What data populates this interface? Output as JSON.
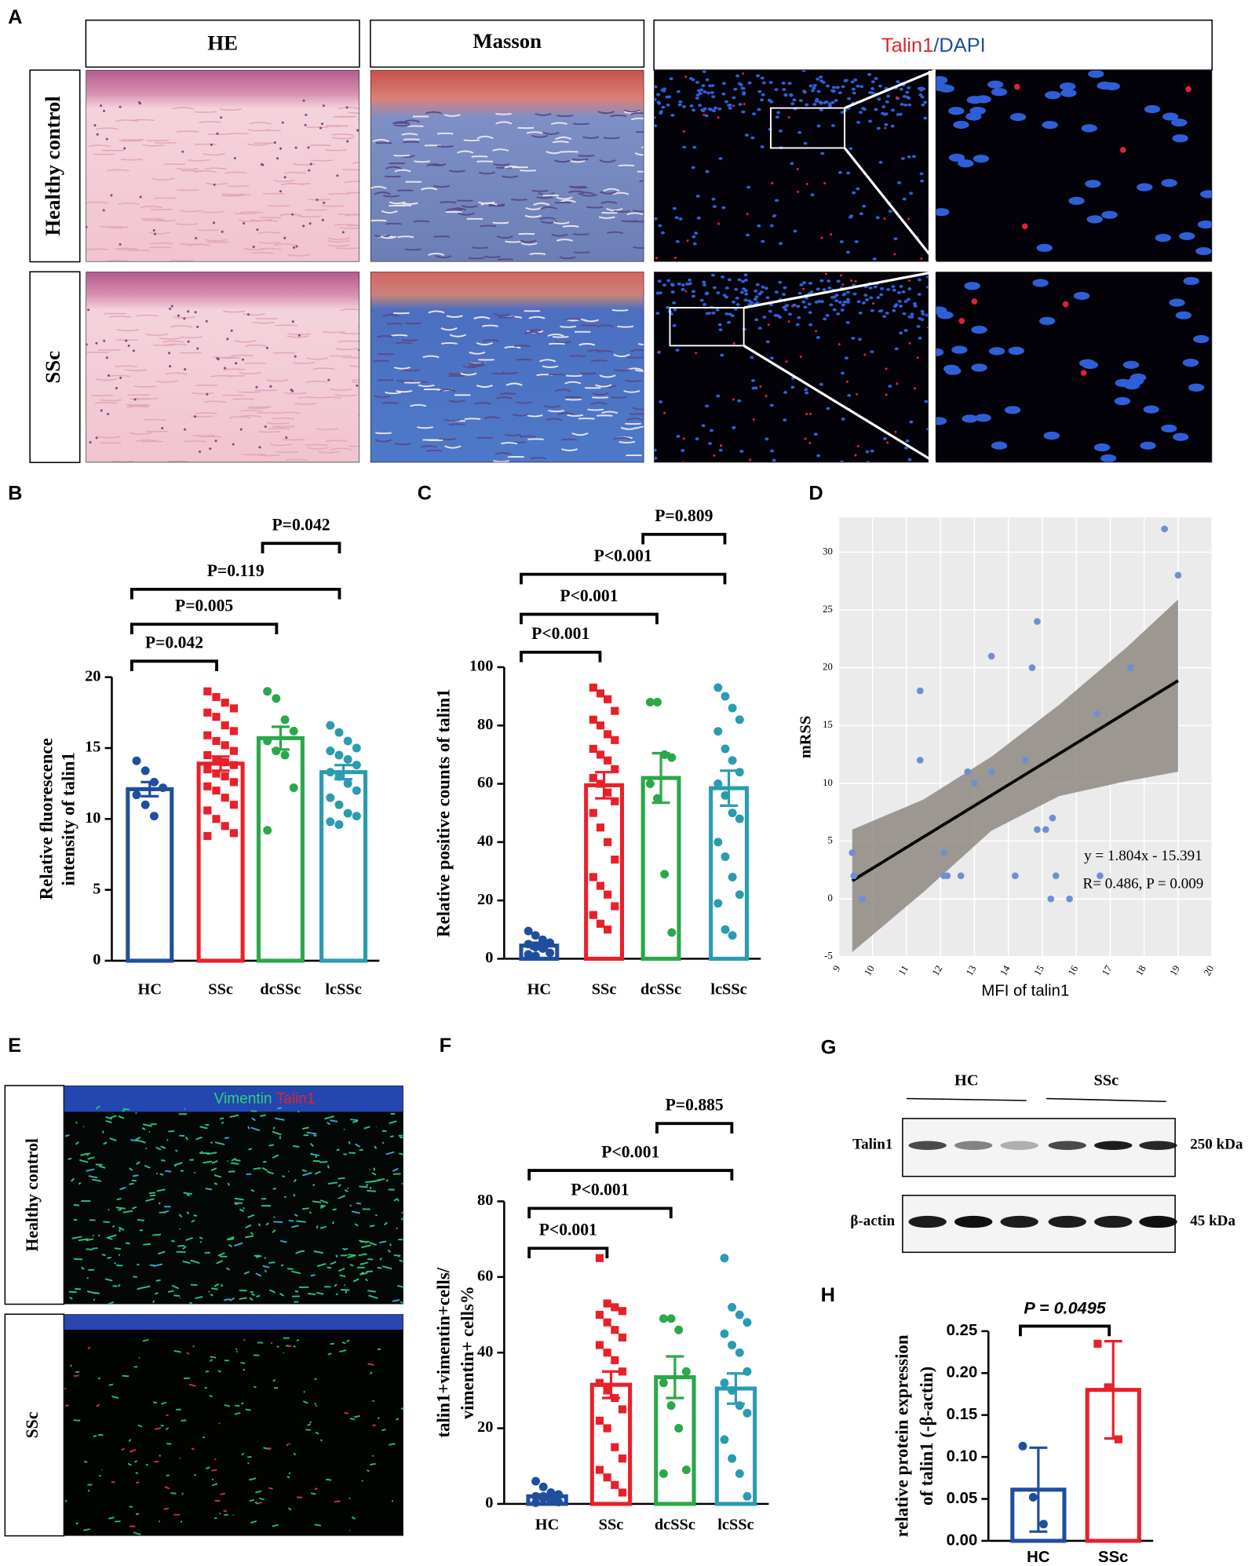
{
  "figure": {
    "panel_labels": [
      "A",
      "B",
      "C",
      "D",
      "E",
      "F",
      "G",
      "H"
    ],
    "panel_a": {
      "headers": [
        "HE",
        "Masson"
      ],
      "if_header": [
        "Talin1",
        "/DAPI"
      ],
      "rows": [
        "Healthy control",
        "SSc"
      ]
    },
    "panel_e": {
      "stain": [
        "Vimentin",
        "Talin1"
      ],
      "rows": [
        "Healthy control",
        "SSc"
      ]
    },
    "panel_g": {
      "groups": [
        "HC",
        "SSc"
      ],
      "proteins": [
        "Talin1",
        "β-actin"
      ],
      "sizes": [
        "250 kDa",
        "45 kDa"
      ]
    }
  },
  "chart_data": [
    {
      "type": "bar",
      "categories": [
        "HC",
        "SSc",
        "dcSSc",
        "lcSSc"
      ],
      "values": [
        12.1,
        13.9,
        15.7,
        13.3
      ],
      "errors": [
        0.5,
        0.5,
        0.8,
        0.5
      ],
      "points": [
        [
          14.1,
          13.4,
          12.6,
          12.2,
          11.7,
          11.0,
          10.2
        ],
        [
          19.0,
          18.6,
          18.2,
          17.8,
          17.5,
          17.2,
          16.6,
          16.2,
          15.9,
          15.5,
          15.2,
          14.8,
          14.5,
          14.2,
          14.0,
          13.8,
          13.5,
          13.2,
          13.0,
          12.6,
          12.3,
          12.0,
          11.5,
          11.0,
          10.6,
          10.0,
          9.5,
          9.0,
          8.8
        ],
        [
          19.0,
          18.5,
          17.0,
          16.2,
          15.5,
          14.8,
          14.5,
          12.2,
          9.2
        ],
        [
          16.6,
          16.1,
          15.5,
          15.0,
          14.8,
          14.5,
          14.2,
          13.8,
          13.3,
          13.0,
          12.5,
          12.0,
          11.5,
          11.0,
          10.4,
          10.2,
          9.8,
          9.6
        ]
      ],
      "colors": [
        "#1f4e9e",
        "#e8202a",
        "#2aa84a",
        "#2a9bb0"
      ],
      "markers": [
        "circle",
        "square",
        "circle",
        "circle"
      ],
      "ylabel": [
        "Relative fluorescence",
        "intensity of talin1"
      ],
      "ylim": [
        0,
        20
      ],
      "yticks": [
        0,
        5,
        10,
        15,
        20
      ],
      "comparisons": [
        "P=0.042",
        "P=0.005",
        "P=0.119",
        "P=0.042"
      ]
    },
    {
      "type": "bar",
      "categories": [
        "HC",
        "SSc",
        "dcSSc",
        "lcSSc"
      ],
      "values": [
        4.5,
        59.5,
        62,
        58.5
      ],
      "errors": [
        1,
        4.5,
        8.5,
        6
      ],
      "points": [
        [
          9.5,
          8,
          6.5,
          5.5,
          5,
          4,
          3.5,
          2,
          1.5,
          1
        ],
        [
          93,
          91,
          89,
          85,
          82,
          80,
          77,
          75,
          72,
          70,
          68,
          65,
          62,
          60,
          57,
          54,
          50,
          45,
          40,
          34,
          28,
          25,
          22,
          18,
          15,
          12,
          10
        ],
        [
          88,
          88,
          70,
          69,
          60,
          55,
          29,
          9
        ],
        [
          93,
          90,
          86,
          82,
          78,
          72,
          68,
          64,
          60,
          56,
          50,
          48,
          40,
          35,
          28,
          22,
          19,
          10,
          8
        ]
      ],
      "colors": [
        "#1f4e9e",
        "#e8202a",
        "#2aa84a",
        "#2a9bb0"
      ],
      "markers": [
        "circle",
        "square",
        "circle",
        "circle"
      ],
      "ylabel": [
        "Relative positive counts of talin1"
      ],
      "ylim": [
        0,
        100
      ],
      "yticks": [
        0,
        20,
        40,
        60,
        80,
        100
      ],
      "comparisons": [
        "P<0.001",
        "P<0.001",
        "P<0.001",
        "P=0.809"
      ]
    },
    {
      "type": "scatter",
      "xlabel": "MFI of talin1",
      "ylabel": "mRSS",
      "x": [
        9.4,
        9.45,
        9.7,
        11.4,
        11.4,
        12.1,
        12.1,
        12.2,
        12.6,
        12.8,
        13.0,
        13.5,
        13.5,
        14.2,
        14.5,
        14.7,
        14.85,
        14.85,
        15.1,
        15.3,
        15.25,
        15.4,
        15.8,
        16.6,
        16.7,
        17.6,
        18.6,
        19.0
      ],
      "y": [
        4,
        2,
        0,
        18,
        12,
        4,
        2,
        2,
        2,
        11,
        10,
        21,
        11,
        2,
        12,
        20,
        24,
        6,
        6,
        7,
        0,
        2,
        0,
        16,
        2,
        20,
        32,
        28
      ],
      "color": "#6f8fd0",
      "fit": {
        "x": [
          9.4,
          19.0
        ],
        "y": [
          1.57,
          18.88
        ]
      },
      "band": {
        "x": [
          9.4,
          11.5,
          13.5,
          15.5,
          17.5,
          19.0
        ],
        "upper": [
          6.0,
          8.6,
          12.3,
          16.8,
          21.8,
          25.9
        ],
        "lower": [
          -4.6,
          0.6,
          5.9,
          8.9,
          10.2,
          11.0
        ]
      },
      "annotations": [
        "y = 1.804x - 15.391",
        "R= 0.486, P = 0.009"
      ],
      "xlim": [
        9,
        20
      ],
      "xticks": [
        9,
        10,
        11,
        12,
        13,
        14,
        15,
        16,
        17,
        18,
        19,
        20
      ],
      "ylim": [
        -5,
        33
      ],
      "yticks": [
        -5,
        0,
        5,
        10,
        15,
        20,
        25,
        30
      ],
      "grid": true
    },
    {
      "type": "bar",
      "categories": [
        "HC",
        "SSc",
        "dcSSc",
        "lcSSc"
      ],
      "values": [
        2,
        31.5,
        33.5,
        30.5
      ],
      "errors": [
        0.5,
        3.5,
        5.5,
        4
      ],
      "points": [
        [
          6,
          4.5,
          3,
          2.5,
          2,
          1.5,
          1,
          0.5,
          0.3,
          2
        ],
        [
          65,
          53,
          52,
          51,
          50,
          48,
          46,
          44,
          42,
          40,
          38,
          35,
          32,
          30,
          28,
          25,
          22,
          20,
          15,
          12,
          9,
          7,
          5,
          3
        ],
        [
          49,
          49,
          46,
          35,
          32,
          26,
          20,
          9,
          8
        ],
        [
          65,
          52,
          50,
          48,
          45,
          42,
          40,
          35,
          32,
          30,
          26,
          24,
          17,
          12,
          8,
          2
        ]
      ],
      "colors": [
        "#1f4e9e",
        "#e8202a",
        "#2aa84a",
        "#2a9bb0"
      ],
      "markers": [
        "circle",
        "square",
        "circle",
        "circle"
      ],
      "ylabel": [
        "talin1+vimentin+cells/",
        "vimentin+ cells%"
      ],
      "ylim": [
        0,
        80
      ],
      "yticks": [
        0,
        20,
        40,
        60,
        80
      ],
      "comparisons": [
        "P<0.001",
        "P<0.001",
        "P<0.001",
        "P=0.885"
      ]
    },
    {
      "type": "bar",
      "categories": [
        "HC",
        "SSc"
      ],
      "values": [
        0.061,
        0.18
      ],
      "errors": [
        0.05,
        0.058
      ],
      "points": [
        [
          0.113,
          0.052,
          0.02
        ],
        [
          0.235,
          0.183,
          0.121
        ]
      ],
      "colors": [
        "#1f4e9e",
        "#e8202a"
      ],
      "markers": [
        "circle",
        "square"
      ],
      "ylabel": [
        "relative protein expression",
        "of talin1 (-β-actin)"
      ],
      "ylim": [
        0,
        0.25
      ],
      "yticks": [
        {
          "value": 0,
          "label": "0.00"
        },
        {
          "value": 0.05,
          "label": "0.05"
        },
        {
          "value": 0.1,
          "label": "0.10"
        },
        {
          "value": 0.15,
          "label": "0.15"
        },
        {
          "value": 0.2,
          "label": "0.20"
        },
        {
          "value": 0.25,
          "label": "0.25"
        }
      ],
      "comparisons": [
        "P = 0.0495"
      ]
    }
  ]
}
